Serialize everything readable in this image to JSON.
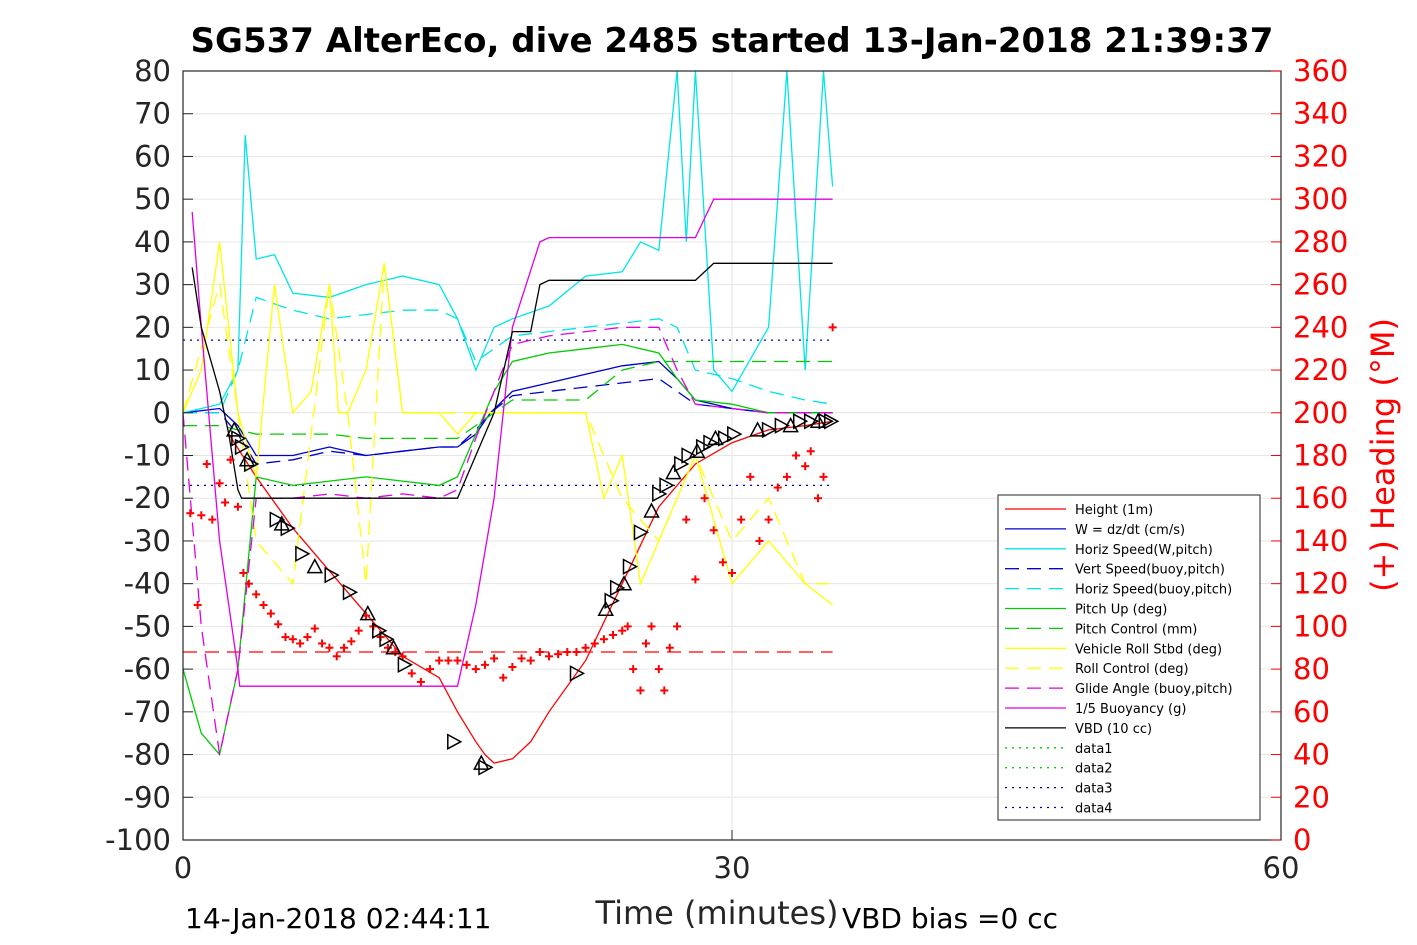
{
  "chart_data": {
    "type": "line",
    "title": "SG537 AlterEco, dive 2485 started 13-Jan-2018 21:39:37",
    "xlabel": "Time (minutes)",
    "ylabel_right": "(+) Heading (°M)",
    "xlim": [
      0,
      60
    ],
    "ylim": [
      -100,
      80
    ],
    "ylim_right": [
      0,
      360
    ],
    "x_ticks": [
      "0",
      "30",
      "60"
    ],
    "y_ticks": [
      "-100",
      "-90",
      "-80",
      "-70",
      "-60",
      "-50",
      "-40",
      "-30",
      "-20",
      "-10",
      "0",
      "10",
      "20",
      "30",
      "40",
      "50",
      "60",
      "70",
      "80"
    ],
    "y_ticks_right": [
      "0",
      "20",
      "40",
      "60",
      "80",
      "100",
      "120",
      "140",
      "160",
      "180",
      "200",
      "220",
      "240",
      "260",
      "280",
      "300",
      "320",
      "340",
      "360"
    ],
    "grid": true,
    "legend_position": "lower-right",
    "footer_left": "14-Jan-2018 02:44:11",
    "footer_right": "VBD bias =0 cc",
    "colors": {
      "height": "#ff0000",
      "w": "#0000cc",
      "horiz_w": "#00e5e5",
      "vert_buoy": "#0000cc",
      "horiz_buoy": "#00e5e5",
      "pitch_up": "#00cc00",
      "pitch_ctrl": "#00cc00",
      "roll": "#ffff00",
      "roll_ctrl": "#ffff00",
      "glide": "#e000e0",
      "buoy": "#e000e0",
      "vbd": "#000000",
      "heading": "#ff0000",
      "data12": "#00cc00",
      "data34": "#0000aa",
      "right_axis": "#ff0000"
    },
    "series": [
      {
        "name": "Height (1m)",
        "style": "solid",
        "color_key": "height",
        "x": [
          2.5,
          4,
          6,
          8,
          10,
          12,
          14,
          15,
          16,
          16.5,
          17,
          18,
          19,
          20,
          22,
          24,
          26,
          28,
          30,
          32,
          34,
          35.5
        ],
        "y": [
          -5,
          -15,
          -27,
          -37,
          -47,
          -57,
          -62,
          -70,
          -77,
          -80,
          -82,
          -81,
          -77,
          -70,
          -58,
          -40,
          -22,
          -12,
          -7,
          -4,
          -3,
          -2
        ]
      },
      {
        "name": "W = dz/dt (cm/s)",
        "style": "solid",
        "color_key": "w",
        "x": [
          0,
          2,
          3,
          4,
          6,
          8,
          10,
          12,
          14,
          15,
          16,
          16.8,
          18,
          20,
          22,
          24,
          26,
          27,
          28,
          30,
          32,
          34,
          35.5
        ],
        "y": [
          0,
          1,
          -3,
          -10,
          -10,
          -8,
          -10,
          -9,
          -8,
          -8,
          -5,
          0,
          5,
          7,
          9,
          11,
          12,
          8,
          3,
          1,
          0,
          0,
          0
        ]
      },
      {
        "name": "Horiz Speed(W,pitch)",
        "style": "solid",
        "color_key": "horiz_w",
        "x": [
          0,
          2,
          3,
          3.4,
          4,
          5,
          6,
          8,
          10,
          12,
          14,
          15,
          16,
          17,
          18,
          20,
          22,
          24,
          25,
          26,
          27,
          27.5,
          28,
          29,
          30,
          32,
          33,
          34,
          35,
          35.5
        ],
        "y": [
          0,
          2,
          10,
          65,
          36,
          37,
          28,
          27,
          30,
          32,
          30,
          22,
          10,
          20,
          22,
          25,
          32,
          33,
          40,
          38,
          80,
          40,
          80,
          10,
          5,
          20,
          80,
          10,
          80,
          53
        ]
      },
      {
        "name": "Vert Speed(buoy,pitch)",
        "style": "dashed",
        "color_key": "vert_buoy",
        "x": [
          0,
          2,
          3,
          4,
          6,
          8,
          10,
          12,
          14,
          15,
          16,
          16.8,
          18,
          20,
          22,
          24,
          26,
          27,
          28,
          30,
          32,
          34,
          35.5
        ],
        "y": [
          0,
          0,
          -5,
          -12,
          -11,
          -9,
          -10,
          -9,
          -8,
          -8,
          -4,
          0,
          4,
          5,
          6,
          7,
          8,
          5,
          2,
          1,
          0,
          0,
          0
        ]
      },
      {
        "name": "Horiz Speed(buoy,pitch)",
        "style": "dashed",
        "color_key": "horiz_buoy",
        "x": [
          0,
          2,
          3,
          4,
          6,
          8,
          10,
          12,
          14,
          15,
          16,
          17,
          18,
          20,
          22,
          24,
          26,
          27,
          28,
          30,
          32,
          34,
          35.5
        ],
        "y": [
          0,
          0,
          10,
          27,
          24,
          22,
          23,
          24,
          24,
          22,
          12,
          15,
          18,
          19,
          20,
          21,
          22,
          20,
          10,
          8,
          5,
          3,
          2
        ]
      },
      {
        "name": "Pitch Up (deg)",
        "style": "solid",
        "color_key": "pitch_up",
        "x": [
          0,
          1,
          2,
          3,
          4,
          6,
          8,
          10,
          12,
          14,
          15,
          16,
          17,
          18,
          20,
          22,
          24,
          26,
          27,
          28,
          30,
          32,
          34,
          35.5
        ],
        "y": [
          -60,
          -75,
          -80,
          -60,
          -15,
          -17,
          -16,
          -15,
          -16,
          -17,
          -15,
          -5,
          5,
          12,
          14,
          15,
          16,
          14,
          8,
          3,
          2,
          0,
          0,
          0
        ]
      },
      {
        "name": "Pitch Control (mm)",
        "style": "dashed",
        "color_key": "pitch_ctrl",
        "x": [
          0,
          2,
          3,
          4,
          6,
          8,
          10,
          12,
          14,
          15,
          16,
          17,
          18,
          20,
          22,
          24,
          26,
          27,
          28,
          30,
          32,
          34,
          35.5
        ],
        "y": [
          -3,
          -3,
          -4,
          -5,
          -5,
          -5,
          -6,
          -6,
          -6,
          -6,
          -3,
          0,
          3,
          3,
          3,
          10,
          12,
          12,
          12,
          12,
          12,
          12,
          12
        ]
      },
      {
        "name": "Vehicle Roll Stbd (deg)",
        "style": "solid",
        "color_key": "roll",
        "x": [
          0,
          1,
          2,
          3,
          4,
          5,
          6,
          7,
          8,
          8.5,
          9,
          10,
          11,
          12,
          13,
          14,
          15,
          16,
          18,
          20,
          22,
          23,
          24,
          25,
          26,
          28,
          30,
          32,
          34,
          35.5
        ],
        "y": [
          0,
          10,
          40,
          0,
          -15,
          30,
          0,
          5,
          30,
          0,
          0,
          10,
          35,
          0,
          0,
          0,
          -5,
          0,
          0,
          0,
          0,
          -20,
          -10,
          -40,
          -30,
          -10,
          -40,
          -30,
          -40,
          -45
        ]
      },
      {
        "name": "Roll Control (deg)",
        "style": "dashed",
        "color_key": "roll_ctrl",
        "x": [
          0,
          2,
          3,
          4,
          6,
          8,
          9,
          10,
          11,
          12,
          14,
          16,
          18,
          20,
          22,
          24,
          26,
          28,
          30,
          32,
          34,
          35.5
        ],
        "y": [
          0,
          30,
          0,
          -30,
          -40,
          30,
          0,
          -40,
          35,
          0,
          0,
          0,
          0,
          0,
          0,
          -20,
          -30,
          -10,
          -30,
          -20,
          -40,
          -40
        ]
      },
      {
        "name": "Glide Angle (buoy,pitch)",
        "style": "dashed",
        "color_key": "glide",
        "x": [
          0,
          1,
          2,
          3,
          4,
          6,
          8,
          10,
          12,
          14,
          15,
          16,
          17,
          18,
          20,
          22,
          24,
          26,
          27,
          28,
          30,
          32,
          34,
          35.5
        ],
        "y": [
          0,
          -50,
          -80,
          -60,
          -20,
          -20,
          -19,
          -20,
          -19,
          -20,
          -18,
          -6,
          5,
          16,
          18,
          19,
          20,
          20,
          10,
          2,
          1,
          0,
          0,
          0
        ]
      },
      {
        "name": "1/5 Buoyancy (g)",
        "style": "solid",
        "color_key": "buoy",
        "x": [
          0.5,
          1,
          2,
          3,
          3.1,
          4,
          8,
          12,
          14.5,
          15,
          16,
          17,
          18,
          19.5,
          20,
          24,
          28,
          29,
          30,
          32,
          34,
          35.5
        ],
        "y": [
          47,
          20,
          -30,
          -60,
          -64,
          -64,
          -64,
          -64,
          -64,
          -64,
          -45,
          -20,
          20,
          40,
          41,
          41,
          41,
          50,
          50,
          50,
          50,
          50
        ]
      },
      {
        "name": "VBD (10 cc)",
        "style": "solid",
        "color_key": "vbd",
        "x": [
          0.5,
          1,
          2,
          2.5,
          3,
          3.2,
          4,
          8,
          12,
          14.5,
          15,
          16,
          17,
          18,
          19,
          19.5,
          20,
          24,
          28,
          29,
          30,
          32,
          34,
          35.5
        ],
        "y": [
          34,
          20,
          5,
          -5,
          -18,
          -20,
          -20,
          -20,
          -20,
          -20,
          -20,
          -10,
          0,
          19,
          19,
          30,
          31,
          31,
          31,
          35,
          35,
          35,
          35,
          35
        ]
      },
      {
        "name": "data1",
        "style": "dotted",
        "color_key": "data12",
        "x": [],
        "y": []
      },
      {
        "name": "data2",
        "style": "dotted",
        "color_key": "data12",
        "x": [],
        "y": []
      },
      {
        "name": "data3",
        "style": "dotted",
        "color_key": "data34",
        "x": [
          0,
          35.5
        ],
        "y": [
          17,
          17
        ]
      },
      {
        "name": "data4",
        "style": "dotted",
        "color_key": "data34",
        "x": [
          0,
          35.5
        ],
        "y": [
          -17,
          -17
        ]
      }
    ],
    "heading_mean": {
      "x": [
        0,
        35.5
      ],
      "y": [
        88,
        88
      ]
    },
    "heading": {
      "axis": "right",
      "x": [
        0.4,
        0.8,
        1,
        1.3,
        1.6,
        2,
        2.3,
        2.6,
        3,
        3.3,
        3.6,
        4,
        4.4,
        4.8,
        5.2,
        5.6,
        6,
        6.4,
        6.8,
        7.2,
        7.6,
        8,
        8.4,
        8.8,
        9.2,
        9.6,
        10,
        10.4,
        10.8,
        11.2,
        11.6,
        12,
        12.5,
        13,
        13.5,
        14,
        14.5,
        15,
        15.5,
        16,
        16.5,
        17,
        17.5,
        18,
        18.5,
        19,
        19.5,
        20,
        20.5,
        21,
        21.5,
        22,
        22.5,
        23,
        23.5,
        24,
        24.3,
        24.6,
        25,
        25.3,
        25.6,
        26,
        26.3,
        26.6,
        27,
        27.5,
        28,
        28.5,
        29,
        29.5,
        30,
        30.5,
        31,
        31.5,
        32,
        32.5,
        33,
        33.5,
        34,
        34.3,
        34.7,
        35,
        35.5
      ],
      "y": [
        153,
        110,
        152,
        176,
        150,
        167,
        158,
        178,
        156,
        125,
        120,
        115,
        110,
        106,
        101,
        95,
        94,
        92,
        95,
        99,
        92,
        90,
        86,
        90,
        93,
        98,
        105,
        100,
        95,
        90,
        88,
        86,
        78,
        74,
        80,
        84,
        84,
        84,
        82,
        80,
        82,
        85,
        76,
        81,
        85,
        84,
        88,
        86,
        87,
        88,
        88,
        90,
        92,
        94,
        96,
        98,
        100,
        80,
        70,
        92,
        100,
        80,
        70,
        90,
        100,
        150,
        122,
        160,
        145,
        130,
        125,
        150,
        170,
        140,
        150,
        165,
        170,
        180,
        175,
        182,
        160,
        170,
        240
      ]
    },
    "markers": {
      "x": [
        2.8,
        3,
        3.2,
        3.5,
        3.7,
        5.1,
        5.4,
        5.7,
        6.5,
        7.2,
        8.1,
        9.1,
        10.1,
        10.7,
        11.1,
        11.5,
        12.1,
        14.8,
        16.3,
        16.5,
        21.5,
        23.1,
        23.4,
        23.7,
        24.1,
        24.4,
        25,
        25.6,
        26,
        26.4,
        26.8,
        27.2,
        27.6,
        28.1,
        28.4,
        28.8,
        29.1,
        29.6,
        30.1,
        31.4,
        32,
        32.7,
        33.2,
        33.7,
        34.3,
        34.7,
        35.1,
        35.4
      ],
      "y": [
        -4,
        -6,
        -8,
        -11,
        -12,
        -25,
        -26,
        -27,
        -33,
        -36,
        -38,
        -42,
        -47,
        -51,
        -53,
        -55,
        -59,
        -77,
        -82,
        -83,
        -61,
        -46,
        -44,
        -41,
        -40,
        -36,
        -28,
        -23,
        -19,
        -17,
        -14,
        -12,
        -10,
        -9,
        -8,
        -7,
        -6,
        -6,
        -5,
        -4,
        -4,
        -3,
        -3,
        -2,
        -2,
        -2,
        -2,
        -2
      ]
    }
  }
}
